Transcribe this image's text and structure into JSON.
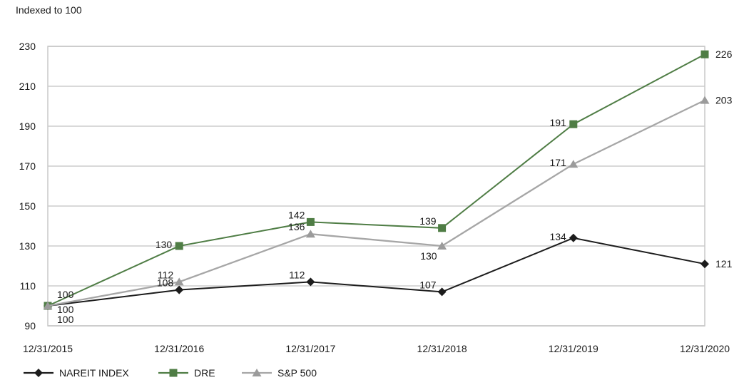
{
  "chart_data": {
    "type": "line",
    "title": "Indexed to 100",
    "x_categories": [
      "12/31/2015",
      "12/31/2016",
      "12/31/2017",
      "12/31/2018",
      "12/31/2019",
      "12/31/2020"
    ],
    "y_ticks": [
      90,
      110,
      130,
      150,
      170,
      190,
      210,
      230
    ],
    "ylim": [
      90,
      230
    ],
    "grid": true,
    "legend_position": "bottom-left",
    "colors": {
      "grid_line": "#d9d9d9",
      "plot_border": "#c9c9c9",
      "text": "#1a1a1a"
    },
    "series": [
      {
        "name": "NAREIT INDEX",
        "marker": "diamond",
        "line_color": "#1c1c1c",
        "marker_color": "#1c1c1c",
        "values": [
          100,
          108,
          112,
          107,
          134,
          121
        ],
        "point_labels": [
          "100",
          "108",
          "112",
          "107",
          "134",
          "121"
        ],
        "label_pos": [
          "start-mid",
          "above-left",
          "above-left",
          "above-left",
          "left",
          "right"
        ]
      },
      {
        "name": "DRE",
        "marker": "square",
        "line_color": "#4f7d45",
        "marker_color": "#4f7d45",
        "values": [
          100,
          130,
          142,
          139,
          191,
          226
        ],
        "point_labels": [
          "100",
          "130",
          "142",
          "139",
          "191",
          "226"
        ],
        "label_pos": [
          "start-top",
          "left",
          "above-left",
          "above-left",
          "left",
          "right"
        ]
      },
      {
        "name": "S&P 500",
        "marker": "triangle",
        "line_color": "#a6a6a6",
        "marker_color": "#9b9b9b",
        "values": [
          100,
          112,
          136,
          130,
          171,
          203
        ],
        "point_labels": [
          "100",
          "112",
          "136",
          "130",
          "171",
          "203"
        ],
        "label_pos": [
          "start-bottom",
          "above-left",
          "above-left",
          "below-left",
          "left",
          "right"
        ]
      }
    ]
  }
}
